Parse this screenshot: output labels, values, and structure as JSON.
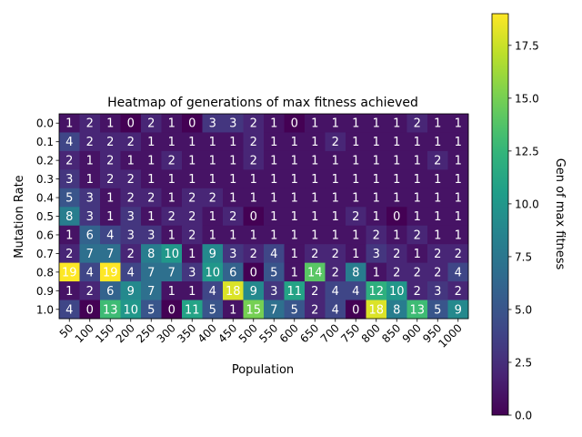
{
  "chart_data": {
    "type": "heatmap",
    "title": "Heatmap of generations of max fitness achieved",
    "xlabel": "Population",
    "ylabel": "Mutation Rate",
    "colorbar_label": "Gen of max fitness",
    "colormap": "viridis",
    "vmin": 0,
    "vmax": 19,
    "colorbar_ticks": [
      "0.0",
      "2.5",
      "5.0",
      "7.5",
      "10.0",
      "12.5",
      "15.0",
      "17.5"
    ],
    "x_categories": [
      "50",
      "100",
      "150",
      "200",
      "250",
      "300",
      "350",
      "400",
      "450",
      "500",
      "550",
      "600",
      "650",
      "700",
      "750",
      "800",
      "850",
      "900",
      "950",
      "1000"
    ],
    "y_categories": [
      "0.0",
      "0.1",
      "0.2",
      "0.3",
      "0.4",
      "0.5",
      "0.6",
      "0.7",
      "0.8",
      "0.9",
      "1.0"
    ],
    "values": [
      [
        1,
        2,
        1,
        0,
        2,
        1,
        0,
        3,
        3,
        2,
        1,
        0,
        1,
        1,
        1,
        1,
        1,
        2,
        1,
        1
      ],
      [
        4,
        2,
        2,
        2,
        1,
        1,
        1,
        1,
        1,
        2,
        1,
        1,
        1,
        2,
        1,
        1,
        1,
        1,
        1,
        1
      ],
      [
        2,
        1,
        2,
        1,
        1,
        2,
        1,
        1,
        1,
        2,
        1,
        1,
        1,
        1,
        1,
        1,
        1,
        1,
        2,
        1
      ],
      [
        3,
        1,
        2,
        2,
        1,
        1,
        1,
        1,
        1,
        1,
        1,
        1,
        1,
        1,
        1,
        1,
        1,
        1,
        1,
        1
      ],
      [
        5,
        3,
        1,
        2,
        2,
        1,
        2,
        2,
        1,
        1,
        1,
        1,
        1,
        1,
        1,
        1,
        1,
        1,
        1,
        1
      ],
      [
        8,
        3,
        1,
        3,
        1,
        2,
        2,
        1,
        2,
        0,
        1,
        1,
        1,
        1,
        2,
        1,
        0,
        1,
        1,
        1
      ],
      [
        1,
        6,
        4,
        3,
        3,
        1,
        2,
        1,
        1,
        1,
        1,
        1,
        1,
        1,
        1,
        2,
        1,
        2,
        1,
        1
      ],
      [
        2,
        7,
        7,
        2,
        8,
        10,
        1,
        9,
        3,
        2,
        4,
        1,
        2,
        2,
        1,
        3,
        2,
        1,
        2,
        2
      ],
      [
        19,
        4,
        19,
        4,
        7,
        7,
        3,
        10,
        6,
        0,
        5,
        1,
        14,
        2,
        8,
        1,
        2,
        2,
        2,
        4
      ],
      [
        1,
        2,
        6,
        9,
        7,
        1,
        1,
        4,
        18,
        9,
        3,
        11,
        2,
        4,
        4,
        12,
        10,
        2,
        3,
        2
      ],
      [
        4,
        0,
        13,
        10,
        5,
        0,
        11,
        5,
        1,
        15,
        7,
        5,
        2,
        4,
        0,
        18,
        8,
        13,
        5,
        9
      ]
    ]
  }
}
